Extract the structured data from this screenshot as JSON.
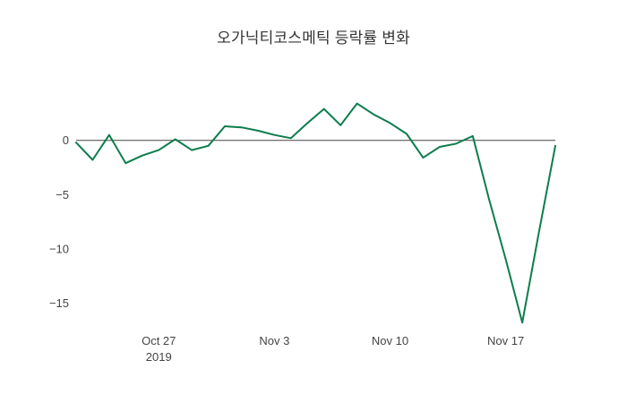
{
  "title": "오가닉티코스메틱 등락률 변화",
  "colors": {
    "line": "#0c7d4d",
    "zero_line": "#444444",
    "tick_text": "#444444",
    "title_text": "#333333",
    "background": "#ffffff"
  },
  "chart_data": {
    "type": "line",
    "title": "오가닉티코스메틱 등락률 변화",
    "xlabel": "",
    "ylabel": "",
    "grid": false,
    "legend": null,
    "ylim": [
      -17.2,
      5.1
    ],
    "x": [
      "2019-10-22",
      "2019-10-23",
      "2019-10-24",
      "2019-10-25",
      "2019-10-26",
      "2019-10-27",
      "2019-10-28",
      "2019-10-29",
      "2019-10-30",
      "2019-10-31",
      "2019-11-01",
      "2019-11-02",
      "2019-11-03",
      "2019-11-04",
      "2019-11-05",
      "2019-11-06",
      "2019-11-07",
      "2019-11-08",
      "2019-11-09",
      "2019-11-10",
      "2019-11-11",
      "2019-11-12",
      "2019-11-13",
      "2019-11-14",
      "2019-11-15",
      "2019-11-16",
      "2019-11-17",
      "2019-11-18",
      "2019-11-19",
      "2019-11-20"
    ],
    "values": [
      -0.2,
      -1.8,
      0.5,
      -2.1,
      -1.4,
      -0.9,
      0.1,
      -0.9,
      -0.5,
      1.3,
      1.2,
      0.9,
      0.5,
      0.2,
      1.6,
      2.9,
      1.4,
      3.4,
      2.4,
      1.6,
      0.6,
      -1.6,
      -0.6,
      -0.3,
      0.4,
      -5.5,
      -11.0,
      -16.8,
      -8.5,
      -0.5
    ],
    "y_ticks": [
      {
        "label": "0",
        "value": 0
      },
      {
        "label": "−5",
        "value": -5
      },
      {
        "label": "−10",
        "value": -10
      },
      {
        "label": "−15",
        "value": -15
      }
    ],
    "x_ticks": [
      {
        "label": "Oct 27",
        "sublabel": "2019",
        "date": "2019-10-27"
      },
      {
        "label": "Nov 3",
        "sublabel": "",
        "date": "2019-11-03"
      },
      {
        "label": "Nov 10",
        "sublabel": "",
        "date": "2019-11-10"
      },
      {
        "label": "Nov 17",
        "sublabel": "",
        "date": "2019-11-17"
      }
    ]
  }
}
